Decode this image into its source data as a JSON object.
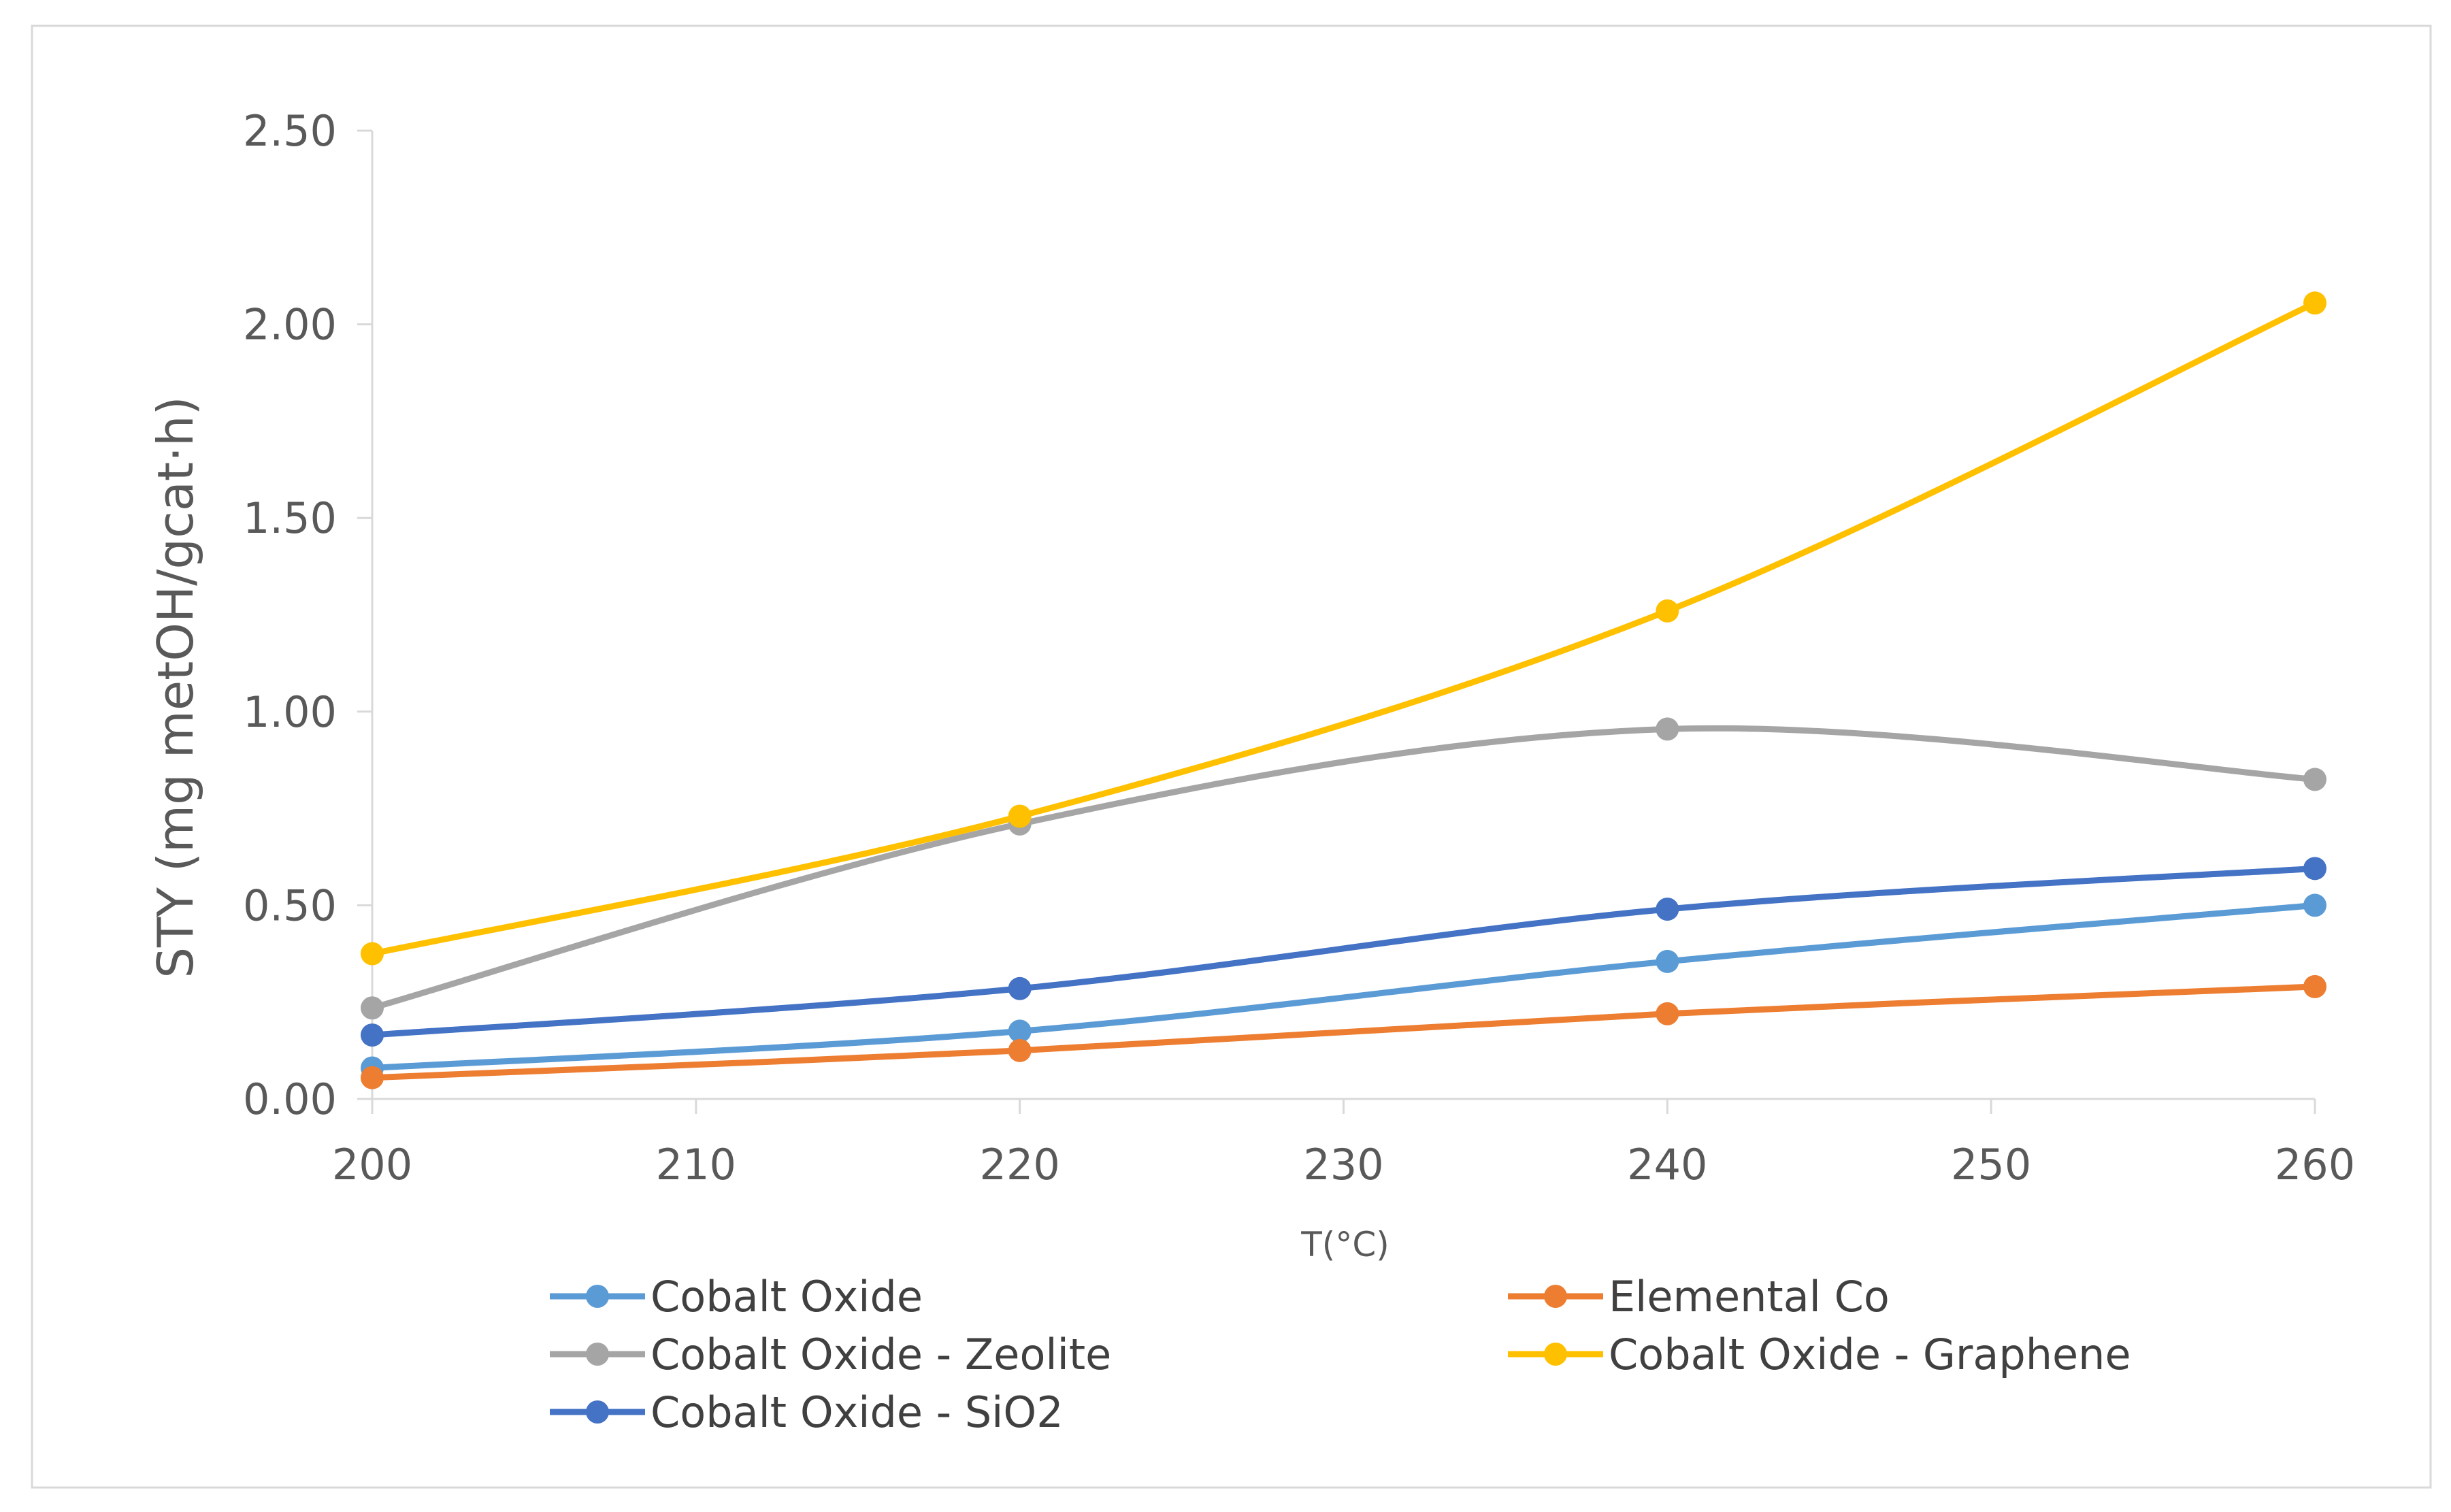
{
  "chart_data": {
    "type": "line",
    "title": "",
    "xlabel": "T(°C)",
    "ylabel": "STY (mg metOH/gcat·h)",
    "xlim": [
      200,
      260
    ],
    "ylim": [
      0,
      2.5
    ],
    "x_ticks": [
      "200",
      "210",
      "220",
      "230",
      "240",
      "250",
      "260"
    ],
    "y_ticks": [
      "0.00",
      "0.50",
      "1.00",
      "1.50",
      "2.00",
      "2.50"
    ],
    "x": [
      200,
      220,
      240,
      260
    ],
    "smooth": true,
    "grid": false,
    "legend_position": "bottom",
    "series": [
      {
        "name": "Cobalt Oxide",
        "color": "#5B9BD5",
        "values": [
          0.08,
          0.175,
          0.355,
          0.5
        ]
      },
      {
        "name": "Elemental Co",
        "color": "#ED7D31",
        "values": [
          0.055,
          0.125,
          0.22,
          0.29
        ]
      },
      {
        "name": "Cobalt Oxide - Zeolite",
        "color": "#A5A5A5",
        "values": [
          0.235,
          0.71,
          0.955,
          0.825
        ]
      },
      {
        "name": "Cobalt Oxide - Graphene",
        "color": "#FFC000",
        "values": [
          0.375,
          0.73,
          1.26,
          2.055
        ]
      },
      {
        "name": "Cobalt Oxide - SiO2",
        "color": "#4472C4",
        "values": [
          0.165,
          0.285,
          0.49,
          0.595
        ]
      }
    ],
    "draw_order": [
      2,
      0,
      1,
      4,
      3
    ]
  }
}
